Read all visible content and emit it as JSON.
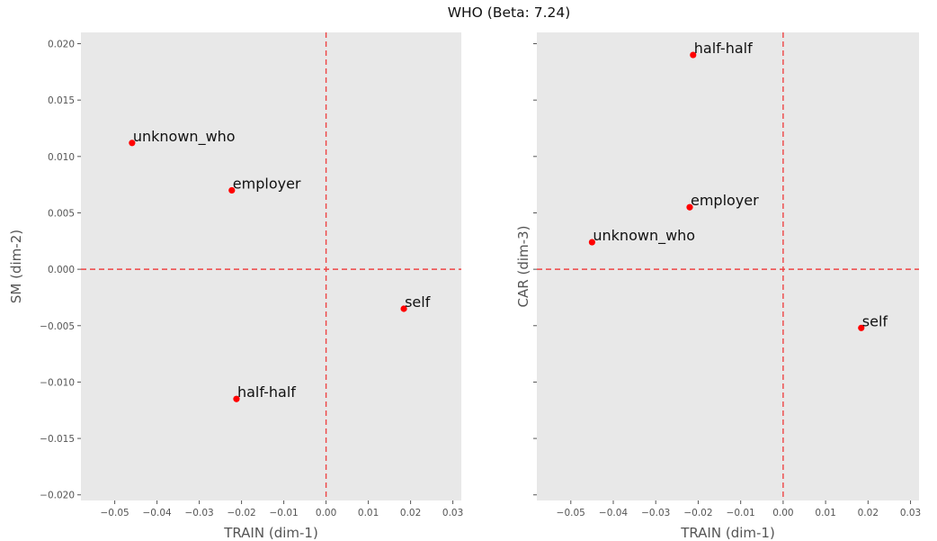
{
  "figure": {
    "title": "WHO (Beta: 7.24)"
  },
  "colors": {
    "plot_bg": "#e8e8e8",
    "marker": "#ff0000",
    "refline": "#ee4444",
    "tick_text": "#555555",
    "axis_text": "#555555"
  },
  "chart_data": [
    {
      "type": "scatter",
      "xlabel": "TRAIN (dim-1)",
      "ylabel": "SM (dim-2)",
      "xlim": [
        -0.058,
        0.032
      ],
      "ylim": [
        -0.0205,
        0.021
      ],
      "xticks": [
        -0.05,
        -0.04,
        -0.03,
        -0.02,
        -0.01,
        0.0,
        0.01,
        0.02,
        0.03
      ],
      "xtick_labels": [
        "−0.05",
        "−0.04",
        "−0.03",
        "−0.02",
        "−0.01",
        "0.00",
        "0.01",
        "0.02",
        "0.03"
      ],
      "yticks": [
        -0.02,
        -0.015,
        -0.01,
        -0.005,
        0.0,
        0.005,
        0.01,
        0.015,
        0.02
      ],
      "ytick_labels": [
        "−0.020",
        "−0.015",
        "−0.010",
        "−0.005",
        "0.000",
        "0.005",
        "0.010",
        "0.015",
        "0.020"
      ],
      "ref_lines": {
        "x": 0.0,
        "y": 0.0
      },
      "points": [
        {
          "label": "unknown_who",
          "x": -0.0459,
          "y": 0.0112
        },
        {
          "label": "employer",
          "x": -0.0223,
          "y": 0.007
        },
        {
          "label": "self",
          "x": 0.0184,
          "y": -0.0035
        },
        {
          "label": "half-half",
          "x": -0.0212,
          "y": -0.0115
        }
      ]
    },
    {
      "type": "scatter",
      "xlabel": "TRAIN (dim-1)",
      "ylabel": "CAR (dim-3)",
      "xlim": [
        -0.058,
        0.032
      ],
      "ylim": [
        -0.0205,
        0.021
      ],
      "xticks": [
        -0.05,
        -0.04,
        -0.03,
        -0.02,
        -0.01,
        0.0,
        0.01,
        0.02,
        0.03
      ],
      "xtick_labels": [
        "−0.05",
        "−0.04",
        "−0.03",
        "−0.02",
        "−0.01",
        "0.00",
        "0.01",
        "0.02",
        "0.03"
      ],
      "yticks": [
        -0.02,
        -0.015,
        -0.01,
        -0.005,
        0.0,
        0.005,
        0.01,
        0.015,
        0.02
      ],
      "ytick_labels": [],
      "ref_lines": {
        "x": 0.0,
        "y": 0.0
      },
      "points": [
        {
          "label": "half-half",
          "x": -0.0212,
          "y": 0.019
        },
        {
          "label": "employer",
          "x": -0.022,
          "y": 0.0055
        },
        {
          "label": "unknown_who",
          "x": -0.045,
          "y": 0.0024
        },
        {
          "label": "self",
          "x": 0.0184,
          "y": -0.0052
        }
      ]
    }
  ]
}
